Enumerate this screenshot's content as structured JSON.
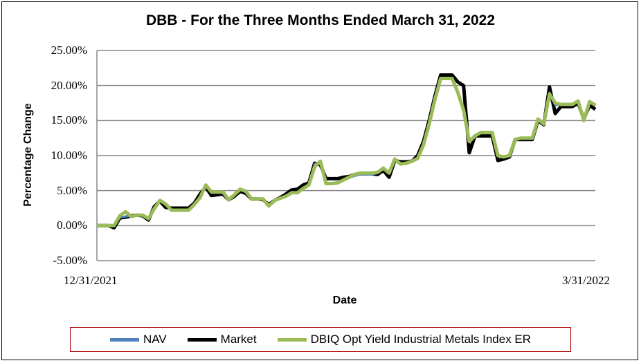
{
  "chart_data": {
    "type": "line",
    "title": "DBB - For the Three Months Ended March 31, 2022",
    "xlabel": "Date",
    "ylabel": "Percentage Change",
    "ylim": [
      -5,
      25
    ],
    "yticks": [
      "25.00%",
      "20.00%",
      "15.00%",
      "10.00%",
      "5.00%",
      "0.00%",
      "-5.00%"
    ],
    "ytick_values": [
      25,
      20,
      15,
      10,
      5,
      0,
      -5
    ],
    "xticks": [
      "12/31/2021",
      "3/31/2022"
    ],
    "grid": true,
    "legend_position": "bottom",
    "x_count": 64,
    "series": [
      {
        "name": "NAV",
        "color": "#4f81bd",
        "values": [
          0,
          0,
          0,
          0,
          1.2,
          1.3,
          1.4,
          1.5,
          1.4,
          0.9,
          2.5,
          3.5,
          3.0,
          2.3,
          2.3,
          2.3,
          2.3,
          3.0,
          4.0,
          5.8,
          4.7,
          4.7,
          4.7,
          3.7,
          4.3,
          5.1,
          4.8,
          3.8,
          3.8,
          3.8,
          2.8,
          3.6,
          3.9,
          4.2,
          4.7,
          4.7,
          5.3,
          5.8,
          8.8,
          9.1,
          6.0,
          6.0,
          6.1,
          6.5,
          6.8,
          7.1,
          7.3,
          7.3,
          7.3,
          7.5,
          8.3,
          7.5,
          9.5,
          8.8,
          8.9,
          9.2,
          9.5,
          11.5,
          14.5,
          18.0,
          21.0,
          21.0,
          21.0,
          19.0
        ]
      },
      {
        "name": "Market",
        "color": "#000000",
        "values": [
          0,
          0,
          0,
          -0.3,
          1.1,
          1.2,
          1.4,
          1.5,
          1.4,
          0.8,
          2.7,
          3.5,
          2.6,
          2.5,
          2.5,
          2.5,
          2.5,
          3.2,
          4.5,
          5.5,
          4.3,
          4.4,
          4.5,
          3.7,
          4.2,
          4.9,
          4.6,
          3.8,
          3.8,
          3.7,
          3.0,
          3.6,
          4.0,
          4.5,
          5.1,
          5.2,
          5.8,
          6.1,
          8.9,
          8.7,
          6.7,
          6.7,
          6.7,
          6.9,
          7.0,
          7.3,
          7.4,
          7.4,
          7.4,
          7.3,
          7.9,
          6.9,
          9.3,
          9.1,
          9.1,
          9.2,
          10.0,
          12.0,
          15.0,
          18.5,
          21.5,
          21.5,
          21.5,
          20.5
        ]
      },
      {
        "name": "DBIQ Opt Yield Industrial Metals Index ER",
        "color": "#9bbb59",
        "values": [
          0,
          0,
          0,
          0,
          1.4,
          2.0,
          1.3,
          1.5,
          1.5,
          1.0,
          2.4,
          3.6,
          3.1,
          2.2,
          2.2,
          2.2,
          2.2,
          3.0,
          4.0,
          5.8,
          4.8,
          4.8,
          4.8,
          3.7,
          4.4,
          5.2,
          4.9,
          3.8,
          3.8,
          3.8,
          2.8,
          3.6,
          3.9,
          4.2,
          4.7,
          4.7,
          5.3,
          5.8,
          8.4,
          9.2,
          6.0,
          6.0,
          6.1,
          6.5,
          6.9,
          7.3,
          7.5,
          7.5,
          7.5,
          7.6,
          8.2,
          7.5,
          9.5,
          8.8,
          8.9,
          9.2,
          9.6,
          11.5,
          14.5,
          18.0,
          21.0,
          21.0,
          21.0,
          19.0
        ]
      }
    ],
    "series_tail": [
      {
        "name": "NAV",
        "values": [
          16.5,
          12.0,
          12.8,
          13.3,
          13.3,
          13.3,
          10.0,
          9.8,
          10.0,
          12.3,
          12.5,
          12.5,
          12.5,
          15.2,
          14.5,
          19.0,
          17.2,
          17.3,
          17.3,
          17.3,
          17.8,
          15.0,
          17.7,
          17.1
        ]
      },
      {
        "name": "Market",
        "values": [
          20.0,
          10.4,
          12.8,
          12.8,
          12.8,
          12.8,
          9.3,
          9.5,
          9.8,
          12.3,
          12.3,
          12.3,
          12.3,
          15.0,
          14.4,
          19.8,
          16.0,
          17.0,
          17.0,
          17.0,
          17.5,
          15.2,
          17.2,
          16.6
        ]
      },
      {
        "name": "DBIQ Opt Yield Industrial Metals Index ER",
        "values": [
          16.5,
          12.0,
          12.8,
          13.3,
          13.3,
          13.3,
          10.0,
          9.8,
          10.0,
          12.3,
          12.5,
          12.5,
          12.5,
          15.2,
          14.5,
          18.8,
          17.5,
          17.3,
          17.3,
          17.3,
          17.8,
          15.0,
          17.7,
          17.2
        ]
      }
    ]
  }
}
